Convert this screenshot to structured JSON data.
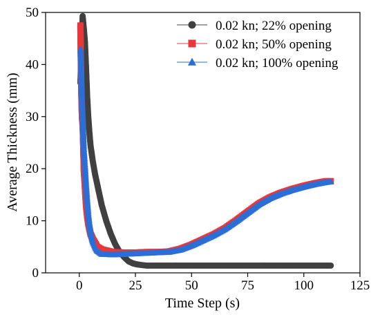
{
  "chart_data": {
    "type": "scatter",
    "xlabel": "Time Step (s)",
    "ylabel": "Average Thickness (mm)",
    "xlim": [
      -15,
      125
    ],
    "ylim": [
      0,
      50
    ],
    "x_ticks": [
      0,
      25,
      50,
      75,
      100,
      125
    ],
    "y_ticks": [
      0,
      10,
      20,
      30,
      40,
      50
    ],
    "grid": false,
    "legend_position": "top-right",
    "series": [
      {
        "name": "0.02 kn; 22% opening",
        "color": "#404040",
        "marker": "circle",
        "points": [
          [
            0.5,
            36.5
          ],
          [
            1.0,
            43.5
          ],
          [
            1.5,
            49.3
          ],
          [
            2.0,
            47.0
          ],
          [
            2.5,
            44.5
          ],
          [
            3.0,
            39.5
          ],
          [
            3.5,
            34.0
          ],
          [
            4.0,
            30.0
          ],
          [
            4.5,
            27.0
          ],
          [
            5.0,
            24.5
          ],
          [
            6.0,
            21.5
          ],
          [
            7.0,
            19.0
          ],
          [
            8.0,
            17.0
          ],
          [
            9.0,
            15.0
          ],
          [
            10.0,
            13.0
          ],
          [
            12.0,
            10.0
          ],
          [
            14.0,
            7.5
          ],
          [
            16.0,
            5.5
          ],
          [
            18.0,
            4.0
          ],
          [
            20.0,
            3.0
          ],
          [
            22.0,
            2.2
          ],
          [
            24.0,
            1.8
          ],
          [
            26.0,
            1.6
          ],
          [
            30.0,
            1.4
          ],
          [
            40.0,
            1.4
          ],
          [
            50.0,
            1.4
          ],
          [
            60.0,
            1.4
          ],
          [
            80.0,
            1.4
          ],
          [
            100.0,
            1.4
          ],
          [
            112.0,
            1.4
          ]
        ]
      },
      {
        "name": "0.02 kn; 50% opening",
        "color": "#e8373a",
        "marker": "square",
        "points": [
          [
            0.5,
            47.5
          ],
          [
            0.8,
            37.5
          ],
          [
            1.0,
            33.0
          ],
          [
            1.2,
            30.0
          ],
          [
            1.5,
            28.5
          ],
          [
            1.8,
            24.0
          ],
          [
            2.0,
            20.0
          ],
          [
            2.5,
            16.5
          ],
          [
            3.0,
            13.0
          ],
          [
            3.5,
            11.0
          ],
          [
            4.0,
            9.5
          ],
          [
            5.0,
            7.5
          ],
          [
            6.0,
            6.5
          ],
          [
            8.0,
            5.0
          ],
          [
            10.0,
            4.5
          ],
          [
            15.0,
            4.0
          ],
          [
            20.0,
            3.9
          ],
          [
            25.0,
            3.9
          ],
          [
            30.0,
            4.0
          ],
          [
            35.0,
            4.0
          ],
          [
            40.0,
            4.1
          ],
          [
            45.0,
            4.6
          ],
          [
            50.0,
            5.4
          ],
          [
            55.0,
            6.4
          ],
          [
            60.0,
            7.4
          ],
          [
            65.0,
            8.6
          ],
          [
            70.0,
            10.1
          ],
          [
            75.0,
            11.7
          ],
          [
            80.0,
            13.3
          ],
          [
            85.0,
            14.5
          ],
          [
            90.0,
            15.4
          ],
          [
            95.0,
            16.1
          ],
          [
            100.0,
            16.7
          ],
          [
            105.0,
            17.2
          ],
          [
            110.0,
            17.6
          ],
          [
            112.0,
            17.6
          ]
        ]
      },
      {
        "name": "0.02 kn; 100% opening",
        "color": "#2b6fd6",
        "marker": "triangle",
        "points": [
          [
            0.6,
            43.0
          ],
          [
            0.8,
            39.0
          ],
          [
            1.0,
            36.0
          ],
          [
            1.2,
            33.0
          ],
          [
            1.5,
            30.0
          ],
          [
            1.8,
            26.0
          ],
          [
            2.0,
            24.0
          ],
          [
            2.3,
            22.0
          ],
          [
            2.6,
            20.0
          ],
          [
            3.0,
            17.0
          ],
          [
            3.5,
            14.0
          ],
          [
            4.0,
            11.5
          ],
          [
            4.5,
            9.5
          ],
          [
            5.0,
            8.0
          ],
          [
            6.0,
            6.0
          ],
          [
            7.0,
            5.0
          ],
          [
            8.0,
            4.2
          ],
          [
            10.0,
            3.6
          ],
          [
            15.0,
            3.5
          ],
          [
            20.0,
            3.6
          ],
          [
            25.0,
            3.7
          ],
          [
            30.0,
            3.8
          ],
          [
            35.0,
            3.9
          ],
          [
            40.0,
            4.0
          ],
          [
            45.0,
            4.4
          ],
          [
            50.0,
            5.2
          ],
          [
            55.0,
            6.2
          ],
          [
            60.0,
            7.2
          ],
          [
            65.0,
            8.4
          ],
          [
            70.0,
            9.9
          ],
          [
            75.0,
            11.5
          ],
          [
            80.0,
            13.1
          ],
          [
            85.0,
            14.3
          ],
          [
            90.0,
            15.2
          ],
          [
            95.0,
            15.9
          ],
          [
            100.0,
            16.5
          ],
          [
            105.0,
            17.0
          ],
          [
            110.0,
            17.4
          ],
          [
            112.0,
            17.5
          ]
        ]
      }
    ]
  }
}
